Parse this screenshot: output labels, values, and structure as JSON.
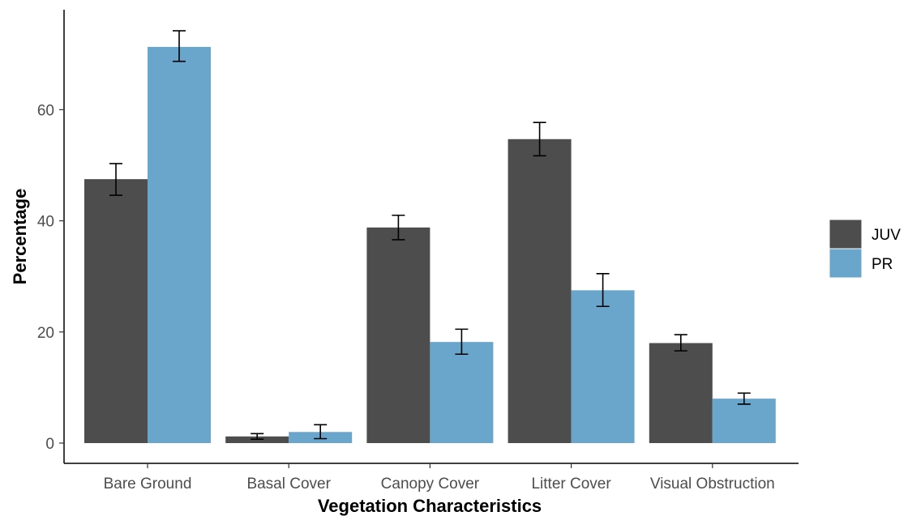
{
  "chart_data": {
    "type": "bar",
    "title": "",
    "xlabel": "Vegetation Characteristics",
    "ylabel": "Percentage",
    "categories": [
      "Bare Ground",
      "Basal Cover",
      "Canopy Cover",
      "Litter Cover",
      "Visual Obstruction"
    ],
    "series": [
      {
        "name": "JUV",
        "color": "#4d4d4d",
        "values": [
          47.5,
          1.2,
          38.8,
          54.7,
          18.0
        ],
        "error_low": [
          44.6,
          0.7,
          36.6,
          51.7,
          16.6
        ],
        "error_high": [
          50.3,
          1.7,
          41.0,
          57.7,
          19.5
        ]
      },
      {
        "name": "PR",
        "color": "#6aa6cc",
        "values": [
          71.3,
          2.0,
          18.2,
          27.5,
          8.0
        ],
        "error_low": [
          68.7,
          0.8,
          16.0,
          24.6,
          7.0
        ],
        "error_high": [
          74.2,
          3.3,
          20.5,
          30.5,
          9.0
        ]
      }
    ],
    "yticks": [
      "0",
      "20",
      "40",
      "60"
    ],
    "ylim": [
      -2,
      79
    ],
    "grid": false,
    "legend_position": "right",
    "legend_title": ""
  }
}
